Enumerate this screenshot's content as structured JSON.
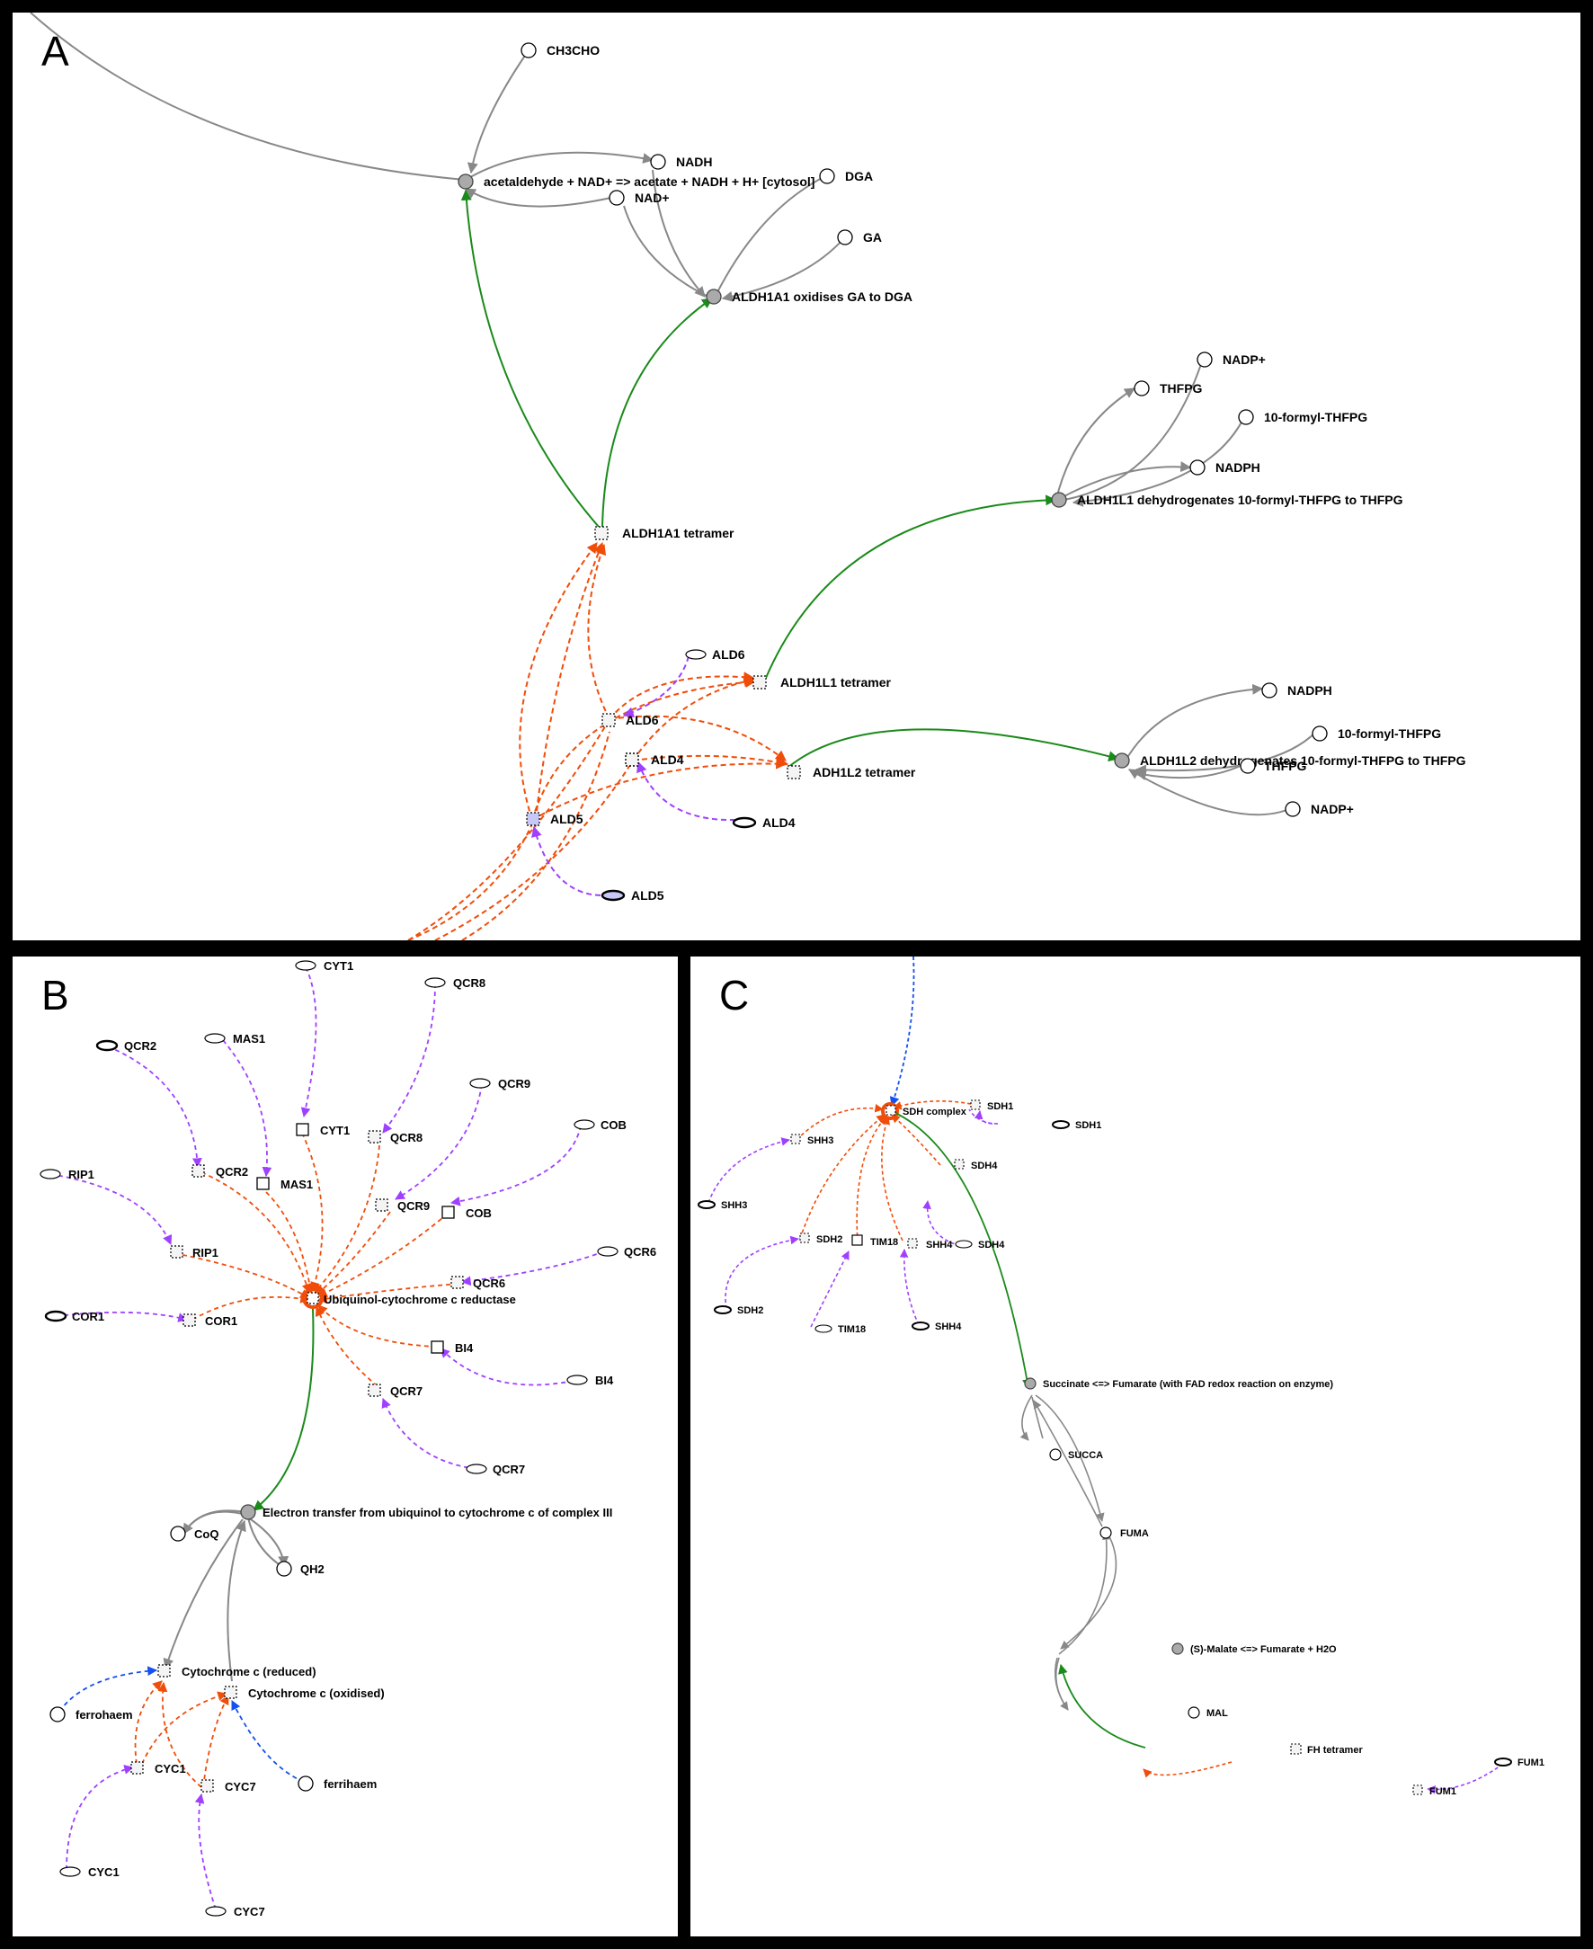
{
  "panels": [
    {
      "id": "a",
      "letter": "A",
      "nodes": [
        {
          "label": "CH3CHO",
          "shape": "circle"
        },
        {
          "label": "acetaldehyde + NAD+ => acetate + NADH + H+ [cytosol]",
          "shape": "reaction"
        },
        {
          "label": "NADH",
          "shape": "circle"
        },
        {
          "label": "NAD+",
          "shape": "circle"
        },
        {
          "label": "DGA",
          "shape": "circle"
        },
        {
          "label": "GA",
          "shape": "circle"
        },
        {
          "label": "ALDH1A1 oxidises GA to DGA",
          "shape": "reaction"
        },
        {
          "label": "NADP+",
          "shape": "circle"
        },
        {
          "label": "THFPG",
          "shape": "circle"
        },
        {
          "label": "10-formyl-THFPG",
          "shape": "circle"
        },
        {
          "label": "NADPH",
          "shape": "circle"
        },
        {
          "label": "ALDH1L1 dehydrogenates 10-formyl-THFPG to THFPG",
          "shape": "reaction"
        },
        {
          "label": "ALDH1A1 tetramer",
          "shape": "complex"
        },
        {
          "label": "ALD6",
          "shape": "gene"
        },
        {
          "label": "ALDH1L1 tetramer",
          "shape": "complex"
        },
        {
          "label": "ALD6",
          "shape": "complex"
        },
        {
          "label": "ALD4",
          "shape": "complex"
        },
        {
          "label": "ADH1L2 tetramer",
          "shape": "complex"
        },
        {
          "label": "NADPH",
          "shape": "circle"
        },
        {
          "label": "10-formyl-THFPG",
          "shape": "circle"
        },
        {
          "label": "ALDH1L2 dehydrogenates 10-formyl-THFPG to THFPG",
          "shape": "reaction"
        },
        {
          "label": "THFPG",
          "shape": "circle"
        },
        {
          "label": "NADP+",
          "shape": "circle"
        },
        {
          "label": "ALD5",
          "shape": "complex"
        },
        {
          "label": "ALD4",
          "shape": "gene"
        },
        {
          "label": "ALD5",
          "shape": "gene"
        }
      ]
    },
    {
      "id": "b",
      "letter": "B",
      "nodes": [
        {
          "label": "CYT1",
          "shape": "gene"
        },
        {
          "label": "QCR8",
          "shape": "gene"
        },
        {
          "label": "QCR2",
          "shape": "gene"
        },
        {
          "label": "MAS1",
          "shape": "gene"
        },
        {
          "label": "QCR9",
          "shape": "gene"
        },
        {
          "label": "COB",
          "shape": "gene"
        },
        {
          "label": "CYT1",
          "shape": "protein"
        },
        {
          "label": "QCR8",
          "shape": "complex"
        },
        {
          "label": "RIP1",
          "shape": "gene"
        },
        {
          "label": "QCR2",
          "shape": "complex"
        },
        {
          "label": "MAS1",
          "shape": "protein"
        },
        {
          "label": "QCR9",
          "shape": "complex"
        },
        {
          "label": "COB",
          "shape": "protein"
        },
        {
          "label": "QCR6",
          "shape": "gene"
        },
        {
          "label": "RIP1",
          "shape": "complex"
        },
        {
          "label": "QCR6",
          "shape": "complex"
        },
        {
          "label": "Ubiquinol-cytochrome c reductase",
          "shape": "complex"
        },
        {
          "label": "COR1",
          "shape": "gene"
        },
        {
          "label": "COR1",
          "shape": "complex"
        },
        {
          "label": "BI4",
          "shape": "protein"
        },
        {
          "label": "BI4",
          "shape": "gene"
        },
        {
          "label": "QCR7",
          "shape": "complex"
        },
        {
          "label": "QCR7",
          "shape": "gene"
        },
        {
          "label": "Electron transfer from ubiquinol to cytochrome c of complex III",
          "shape": "reaction"
        },
        {
          "label": "CoQ",
          "shape": "circle"
        },
        {
          "label": "QH2",
          "shape": "circle"
        },
        {
          "label": "Cytochrome c (reduced)",
          "shape": "complex"
        },
        {
          "label": "Cytochrome c (oxidised)",
          "shape": "complex"
        },
        {
          "label": "ferrohaem",
          "shape": "circle"
        },
        {
          "label": "CYC1",
          "shape": "complex"
        },
        {
          "label": "CYC7",
          "shape": "complex"
        },
        {
          "label": "ferrihaem",
          "shape": "circle"
        },
        {
          "label": "CYC1",
          "shape": "gene"
        },
        {
          "label": "CYC7",
          "shape": "gene"
        }
      ]
    },
    {
      "id": "c",
      "letter": "C",
      "nodes": [
        {
          "label": "SDH complex",
          "shape": "complex"
        },
        {
          "label": "SDH1",
          "shape": "complex"
        },
        {
          "label": "SHH3",
          "shape": "complex"
        },
        {
          "label": "SDH1",
          "shape": "gene"
        },
        {
          "label": "SDH4",
          "shape": "complex"
        },
        {
          "label": "SHH3",
          "shape": "gene"
        },
        {
          "label": "SDH2",
          "shape": "complex"
        },
        {
          "label": "TIM18",
          "shape": "protein"
        },
        {
          "label": "SHH4",
          "shape": "complex"
        },
        {
          "label": "SDH4",
          "shape": "gene"
        },
        {
          "label": "SDH2",
          "shape": "gene"
        },
        {
          "label": "TIM18",
          "shape": "gene"
        },
        {
          "label": "SHH4",
          "shape": "gene"
        },
        {
          "label": "Succinate <=> Fumarate (with FAD redox reaction on enzyme)",
          "shape": "reaction"
        },
        {
          "label": "SUCCA",
          "shape": "circle"
        },
        {
          "label": "FUMA",
          "shape": "circle"
        },
        {
          "label": "(S)-Malate <=> Fumarate + H2O",
          "shape": "reaction"
        },
        {
          "label": "MAL",
          "shape": "circle"
        },
        {
          "label": "FH tetramer",
          "shape": "complex"
        },
        {
          "label": "FUM1",
          "shape": "gene"
        },
        {
          "label": "FUM1",
          "shape": "complex"
        }
      ]
    }
  ],
  "edge_colors": {
    "conversion": "#888888",
    "catalysis": "#1a8a1a",
    "assembly": "#f04d0a",
    "expression": "#a040ff",
    "transport": "#1550f0"
  }
}
